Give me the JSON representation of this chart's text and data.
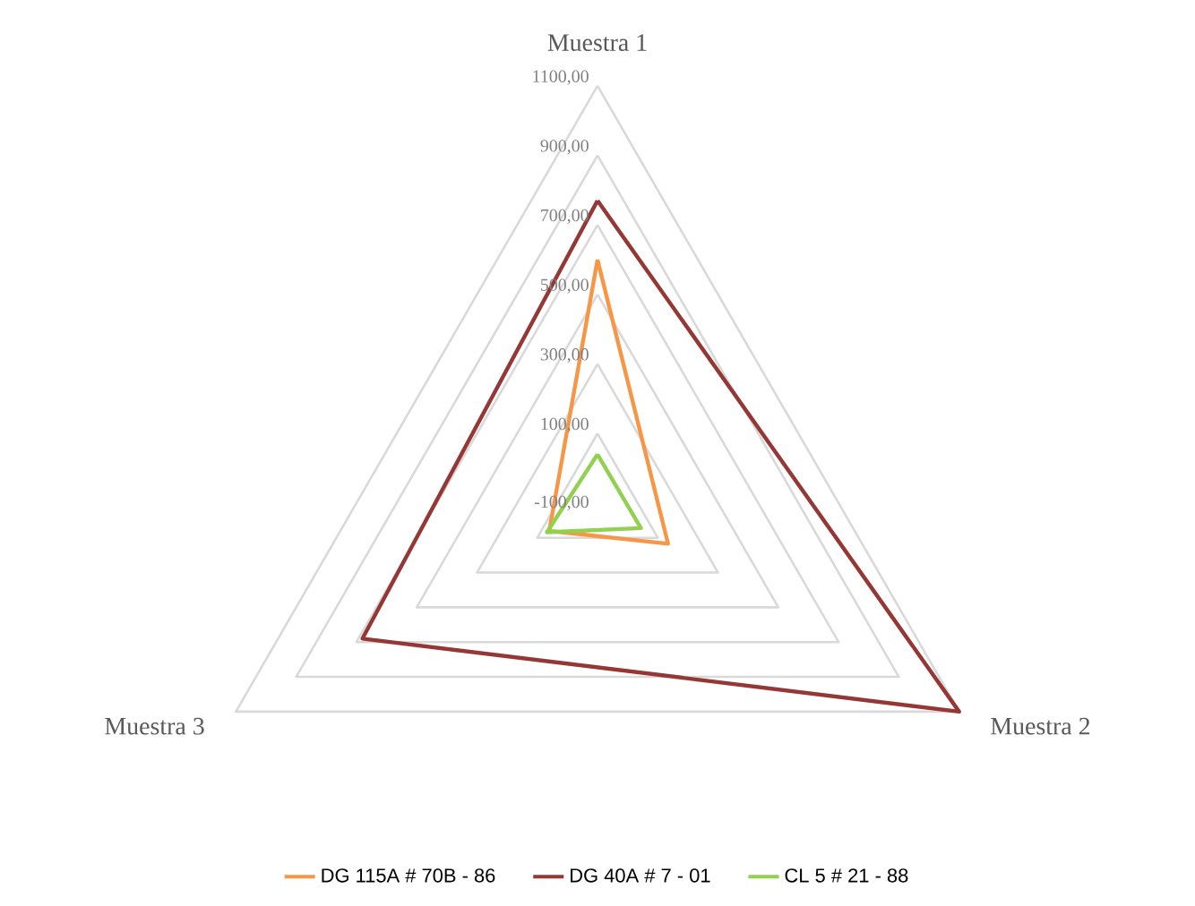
{
  "chart_data": {
    "type": "radar",
    "categories": [
      "Muestra 1",
      "Muestra 2",
      "Muestra 3"
    ],
    "series": [
      {
        "name": "DG 115A # 70B - 86",
        "color": "#f79646",
        "values": [
          600,
          134,
          60
        ]
      },
      {
        "name": "DG 40A # 7 - 01",
        "color": "#953735",
        "values": [
          770,
          1100,
          680
        ]
      },
      {
        "name": "CL 5 # 21 - 88",
        "color": "#92d050",
        "values": [
          40,
          44,
          68
        ]
      }
    ],
    "ylim": [
      -100,
      1100
    ],
    "yticks": [
      {
        "value": -100,
        "label": "-100,00"
      },
      {
        "value": 100,
        "label": "100,00"
      },
      {
        "value": 300,
        "label": "300,00"
      },
      {
        "value": 500,
        "label": "500,00"
      },
      {
        "value": 700,
        "label": "700,00"
      },
      {
        "value": 900,
        "label": "900,00"
      },
      {
        "value": 1100,
        "label": "1100,00"
      }
    ],
    "grid": true,
    "legend": "bottom",
    "line_style": "solid",
    "marker": "none"
  }
}
